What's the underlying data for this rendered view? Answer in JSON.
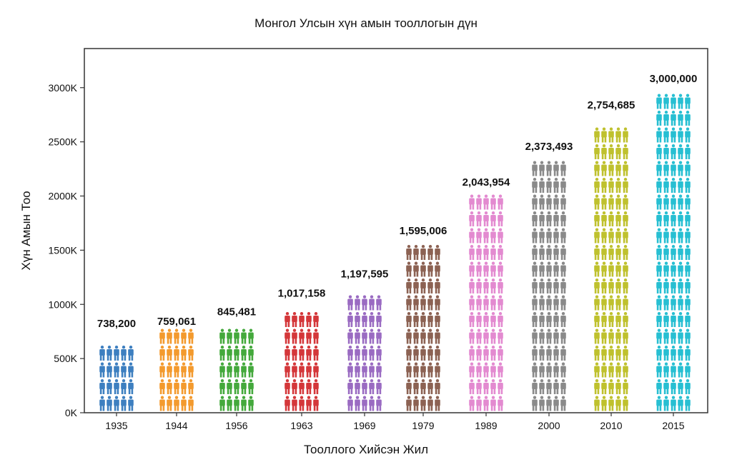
{
  "chart_data": {
    "type": "bar",
    "title": "Монгол Улсын хүн амын тооллогын дүн",
    "xlabel": "Тооллого Хийсэн Жил",
    "ylabel": "Хүн Амын Тоо",
    "ylim": [
      0,
      3300
    ],
    "y_unit": "K",
    "yticks": [
      {
        "value": 0,
        "label": "0K"
      },
      {
        "value": 500,
        "label": "500K"
      },
      {
        "value": 1000,
        "label": "1000K"
      },
      {
        "value": 1500,
        "label": "1500K"
      },
      {
        "value": 2000,
        "label": "2000K"
      },
      {
        "value": 2500,
        "label": "2500K"
      },
      {
        "value": 3000,
        "label": "3000K"
      }
    ],
    "categories": [
      "1935",
      "1944",
      "1956",
      "1963",
      "1969",
      "1979",
      "1989",
      "2000",
      "2010",
      "2015"
    ],
    "values": [
      738.2,
      759.061,
      845.481,
      1017.158,
      1197.595,
      1595.006,
      2043.954,
      2373.493,
      2754.685,
      3000.0
    ],
    "value_labels": [
      "738,200",
      "759,061",
      "845,481",
      "1,017,158",
      "1,197,595",
      "1,595,006",
      "2,043,954",
      "2,373,493",
      "2,754,685",
      "3,000,000"
    ],
    "colors": [
      "#3d7fc0",
      "#f39a2e",
      "#44a93c",
      "#d4373a",
      "#9a6bc2",
      "#8c6253",
      "#e38ad0",
      "#8a8a8a",
      "#bfc12e",
      "#27bfd2"
    ],
    "mark_style": "person-icon-grid",
    "grid": false
  }
}
